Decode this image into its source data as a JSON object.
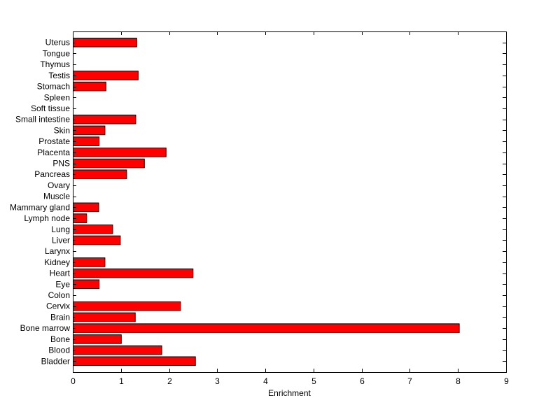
{
  "chart_data": {
    "type": "bar",
    "orientation": "horizontal",
    "title": "",
    "xlabel": "Enrichment",
    "ylabel": "",
    "xlim": [
      0,
      9
    ],
    "xticks": [
      0,
      1,
      2,
      3,
      4,
      5,
      6,
      7,
      8,
      9
    ],
    "grid": false,
    "bar_color": "#ff0000",
    "edge_color": "#000000",
    "categories": [
      "Bladder",
      "Blood",
      "Bone",
      "Bone marrow",
      "Brain",
      "Cervix",
      "Colon",
      "Eye",
      "Heart",
      "Kidney",
      "Larynx",
      "Liver",
      "Lung",
      "Lymph node",
      "Mammary gland",
      "Muscle",
      "Ovary",
      "Pancreas",
      "PNS",
      "Placenta",
      "Prostate",
      "Skin",
      "Small intestine",
      "Soft tissue",
      "Spleen",
      "Stomach",
      "Testis",
      "Thymus",
      "Tongue",
      "Uterus"
    ],
    "values": [
      2.54,
      1.84,
      1.0,
      8.02,
      1.29,
      2.23,
      0,
      0.54,
      2.49,
      0.66,
      0,
      0.98,
      0.82,
      0.28,
      0.53,
      0,
      0,
      1.11,
      1.48,
      1.93,
      0.54,
      0.66,
      1.3,
      0,
      0,
      0.68,
      1.35,
      0,
      0,
      1.32
    ]
  }
}
